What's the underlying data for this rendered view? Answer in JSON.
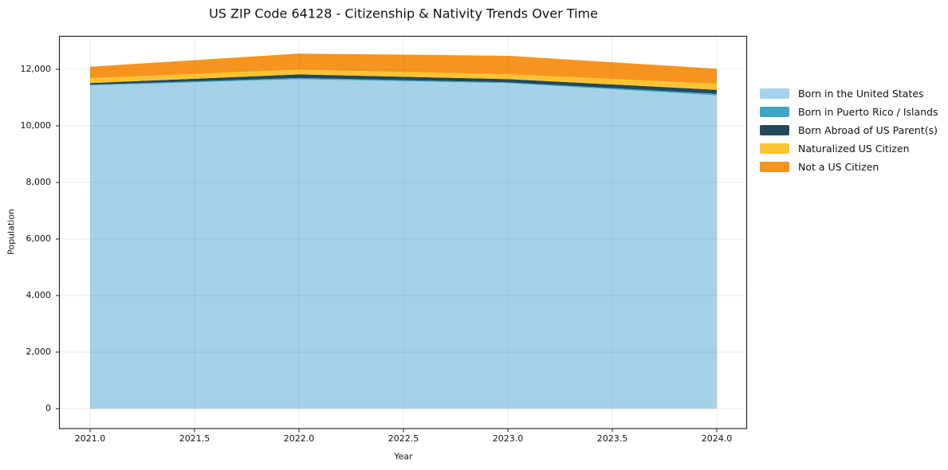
{
  "chart_data": {
    "type": "area",
    "stacked": true,
    "title": "US ZIP Code 64128 - Citizenship & Nativity Trends Over Time",
    "xlabel": "Year",
    "ylabel": "Population",
    "x": [
      2021,
      2022,
      2023,
      2024
    ],
    "series": [
      {
        "name": "Born in the United States",
        "color": "#a5d2e8",
        "values": [
          11430,
          11650,
          11510,
          11080
        ]
      },
      {
        "name": "Born in Puerto Rico / Islands",
        "color": "#3ea5c3",
        "values": [
          25,
          45,
          30,
          55
        ]
      },
      {
        "name": "Born Abroad of US Parent(s)",
        "color": "#21495c",
        "values": [
          60,
          125,
          115,
          140
        ]
      },
      {
        "name": "Naturalized US Citizen",
        "color": "#fdc330",
        "values": [
          170,
          170,
          170,
          215
        ]
      },
      {
        "name": "Not a US Citizen",
        "color": "#f7941f",
        "values": [
          405,
          565,
          655,
          530
        ]
      }
    ],
    "stacked_totals": [
      12090,
      12555,
      12480,
      12020
    ],
    "x_ticks": [
      2021.0,
      2021.5,
      2022.0,
      2022.5,
      2023.0,
      2023.5,
      2024.0
    ],
    "x_tick_labels": [
      "2021.0",
      "2021.5",
      "2022.0",
      "2022.5",
      "2023.0",
      "2023.5",
      "2024.0"
    ],
    "y_ticks": [
      0,
      2000,
      4000,
      6000,
      8000,
      10000,
      12000
    ],
    "y_tick_labels": [
      "0",
      "2,000",
      "4,000",
      "6,000",
      "8,000",
      "10,000",
      "12,000"
    ],
    "xlim": [
      2020.85,
      2024.15
    ],
    "ylim": [
      -700,
      13180
    ],
    "grid": true,
    "legend_position": "right-outside",
    "colors": {
      "spine": "#1a1a1a",
      "grid": "rgba(110,110,110,0.16)",
      "background": "#ffffff"
    }
  }
}
